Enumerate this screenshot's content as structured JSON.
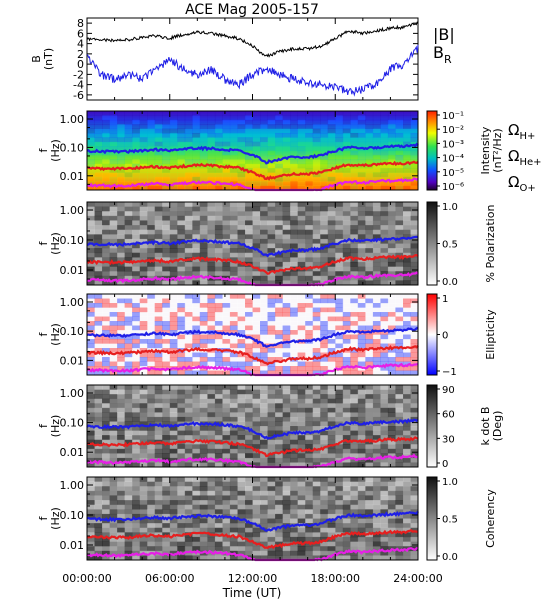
{
  "chart_data": {
    "title": "ACE Mag 2005-157",
    "xlabel": "Time (UT)",
    "x_ticks": [
      "00:00:00",
      "06:00:00",
      "12:00:00",
      "18:00:00",
      "24:00:00"
    ],
    "x_range_hours": [
      0,
      24
    ],
    "panels": [
      {
        "type": "line",
        "ylabel": "B",
        "yunit": "(nT)",
        "y_range": [
          -7,
          9
        ],
        "y_ticks": [
          "8",
          "6",
          "4",
          "2",
          "0",
          "-2",
          "-4",
          "-6"
        ],
        "legend": [
          {
            "label": "|B|",
            "color": "#000000"
          },
          {
            "label": "B",
            "sub": "R",
            "color": "#1f1fe6"
          }
        ],
        "series": [
          {
            "label_ref": "|B|",
            "color": "#000000",
            "x": [
              0,
              1,
              2,
              3,
              4,
              5,
              6,
              7,
              8,
              9,
              10,
              11,
              12,
              13,
              14,
              15,
              16,
              17,
              18,
              19,
              20,
              21,
              22,
              23,
              24
            ],
            "y": [
              5.0,
              4.8,
              4.6,
              4.8,
              5.2,
              5.5,
              5.0,
              5.8,
              6.2,
              6.0,
              5.5,
              5.0,
              3.5,
              1.5,
              2.5,
              3.0,
              3.0,
              3.5,
              5.0,
              6.5,
              6.0,
              6.5,
              7.0,
              7.2,
              8.0
            ]
          },
          {
            "label_ref": "B_R",
            "color": "#1f1fe6",
            "x": [
              0,
              1,
              2,
              3,
              4,
              5,
              6,
              7,
              8,
              9,
              10,
              11,
              12,
              13,
              14,
              15,
              16,
              17,
              18,
              19,
              20,
              21,
              22,
              23,
              24
            ],
            "y": [
              2.0,
              -2.0,
              -3.0,
              -2.0,
              -3.0,
              -1.0,
              1.0,
              -1.0,
              -2.0,
              -1.0,
              -3.0,
              -4.0,
              -2.0,
              -1.0,
              -2.0,
              -3.0,
              -3.5,
              -4.0,
              -4.5,
              -5.5,
              -5.0,
              -4.0,
              -1.0,
              0.0,
              3.0
            ]
          }
        ]
      },
      {
        "type": "heatmap",
        "ylabel": "f",
        "yunit": "(Hz)",
        "y_ticks": [
          "1.00",
          "0.10",
          "0.01"
        ],
        "y_scale": "log",
        "colorbar": {
          "label": "Intensity",
          "unit": "(nT²/Hz)",
          "ticks": [
            "10⁻¹",
            "10⁻²",
            "10⁻³",
            "10⁻⁴",
            "10⁻⁵",
            "10⁻⁶"
          ],
          "scale": "rainbow"
        },
        "gyro_legend": [
          {
            "label": "Ω",
            "sub": "H+",
            "color": "#1f1fe6"
          },
          {
            "label": "Ω",
            "sub": "He+",
            "color": "#e61f1f"
          },
          {
            "label": "Ω",
            "sub": "O+",
            "color": "#e61fe6"
          }
        ]
      },
      {
        "type": "heatmap",
        "ylabel": "f",
        "yunit": "(Hz)",
        "y_ticks": [
          "1.00",
          "0.10",
          "0.01"
        ],
        "colorbar": {
          "label": "% Polarization",
          "ticks": [
            "1.0",
            "0.5",
            "0.0"
          ],
          "scale": "gray"
        }
      },
      {
        "type": "heatmap",
        "ylabel": "f",
        "yunit": "(Hz)",
        "y_ticks": [
          "1.00",
          "0.10",
          "0.01"
        ],
        "colorbar": {
          "label": "Ellipticity",
          "ticks": [
            "1",
            "0",
            "−1"
          ],
          "scale": "bwr"
        }
      },
      {
        "type": "heatmap",
        "ylabel": "f",
        "yunit": "(Hz)",
        "y_ticks": [
          "1.00",
          "0.10",
          "0.01"
        ],
        "colorbar": {
          "label": "k dot B",
          "unit": "(Deg)",
          "ticks": [
            "90",
            "60",
            "30",
            "0"
          ],
          "scale": "gray"
        }
      },
      {
        "type": "heatmap",
        "ylabel": "f",
        "yunit": "(Hz)",
        "y_ticks": [
          "1.00",
          "0.10",
          "0.01"
        ],
        "colorbar": {
          "label": "Coherency",
          "ticks": [
            "1.0",
            "0.5",
            "0.0"
          ],
          "scale": "gray"
        }
      }
    ],
    "gyrofrequency_curves": {
      "hours": [
        0,
        1,
        2,
        3,
        4,
        5,
        6,
        7,
        8,
        9,
        10,
        11,
        12,
        13,
        14,
        15,
        16,
        17,
        18,
        19,
        20,
        21,
        22,
        23,
        24
      ],
      "H+_hz": [
        0.075,
        0.073,
        0.07,
        0.072,
        0.078,
        0.084,
        0.076,
        0.088,
        0.094,
        0.092,
        0.084,
        0.076,
        0.053,
        0.03,
        0.038,
        0.046,
        0.046,
        0.053,
        0.076,
        0.1,
        0.092,
        0.1,
        0.107,
        0.11,
        0.122
      ],
      "He+_hz": [
        0.019,
        0.018,
        0.018,
        0.018,
        0.02,
        0.021,
        0.019,
        0.022,
        0.024,
        0.023,
        0.021,
        0.019,
        0.013,
        0.008,
        0.0095,
        0.0115,
        0.0115,
        0.013,
        0.019,
        0.025,
        0.023,
        0.025,
        0.027,
        0.027,
        0.03
      ],
      "O+_hz": [
        0.0047,
        0.0046,
        0.0044,
        0.0045,
        0.0049,
        0.0053,
        0.0048,
        0.0055,
        0.0059,
        0.0057,
        0.0053,
        0.0048,
        0.0033,
        0.0019,
        0.0024,
        0.0029,
        0.0029,
        0.0033,
        0.0048,
        0.0063,
        0.0057,
        0.0063,
        0.0067,
        0.0069,
        0.0076
      ]
    }
  }
}
